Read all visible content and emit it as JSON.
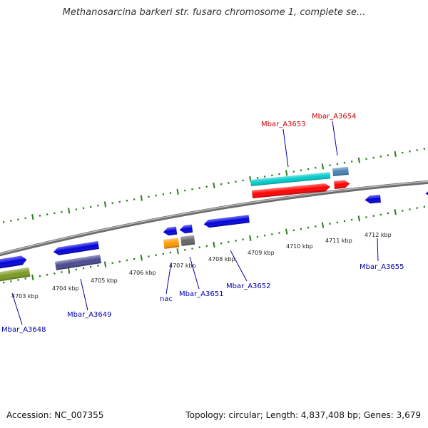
{
  "title": "Methanosarcina barkeri str. fusaro chromosome 1, complete se...",
  "footer": {
    "accession": "Accession: NC_007355",
    "stats": "Topology: circular; Length: 4,837,408 bp; Genes: 3,679"
  },
  "colors": {
    "label_red": "#cc0000",
    "label_blue": "#0000aa",
    "backbone": "#888888",
    "tick": "#2e7d1e",
    "genes": [
      "#0000dd",
      "#00cccc",
      "#ff0000",
      "#4682b4",
      "#7a9a20",
      "#484890",
      "#ff9900",
      "#666666"
    ]
  },
  "scale_labels": [
    "4703 kbp",
    "4704 kbp",
    "4705 kbp",
    "4706 kbp",
    "4707 kbp",
    "4708 kbp",
    "4709 kbp",
    "4710 kbp",
    "4711 kbp",
    "4712 kbp"
  ],
  "gene_labels": [
    {
      "id": "mbar-a3653-label",
      "text": "Mbar_A3653",
      "color": "red"
    },
    {
      "id": "mbar-a3654-label",
      "text": "Mbar_A3654",
      "color": "red"
    },
    {
      "id": "mbar-a3648-label",
      "text": "Mbar_A3648",
      "color": "blue"
    },
    {
      "id": "mbar-a3649-label",
      "text": "Mbar_A3649",
      "color": "blue"
    },
    {
      "id": "nac-label",
      "text": "nac",
      "color": "blue"
    },
    {
      "id": "mbar-a3651-label",
      "text": "Mbar_A3651",
      "color": "blue"
    },
    {
      "id": "mbar-a3652-label",
      "text": "Mbar_A3652",
      "color": "blue"
    },
    {
      "id": "mbar-a3655-label",
      "text": "Mbar_A3655",
      "color": "blue"
    }
  ]
}
